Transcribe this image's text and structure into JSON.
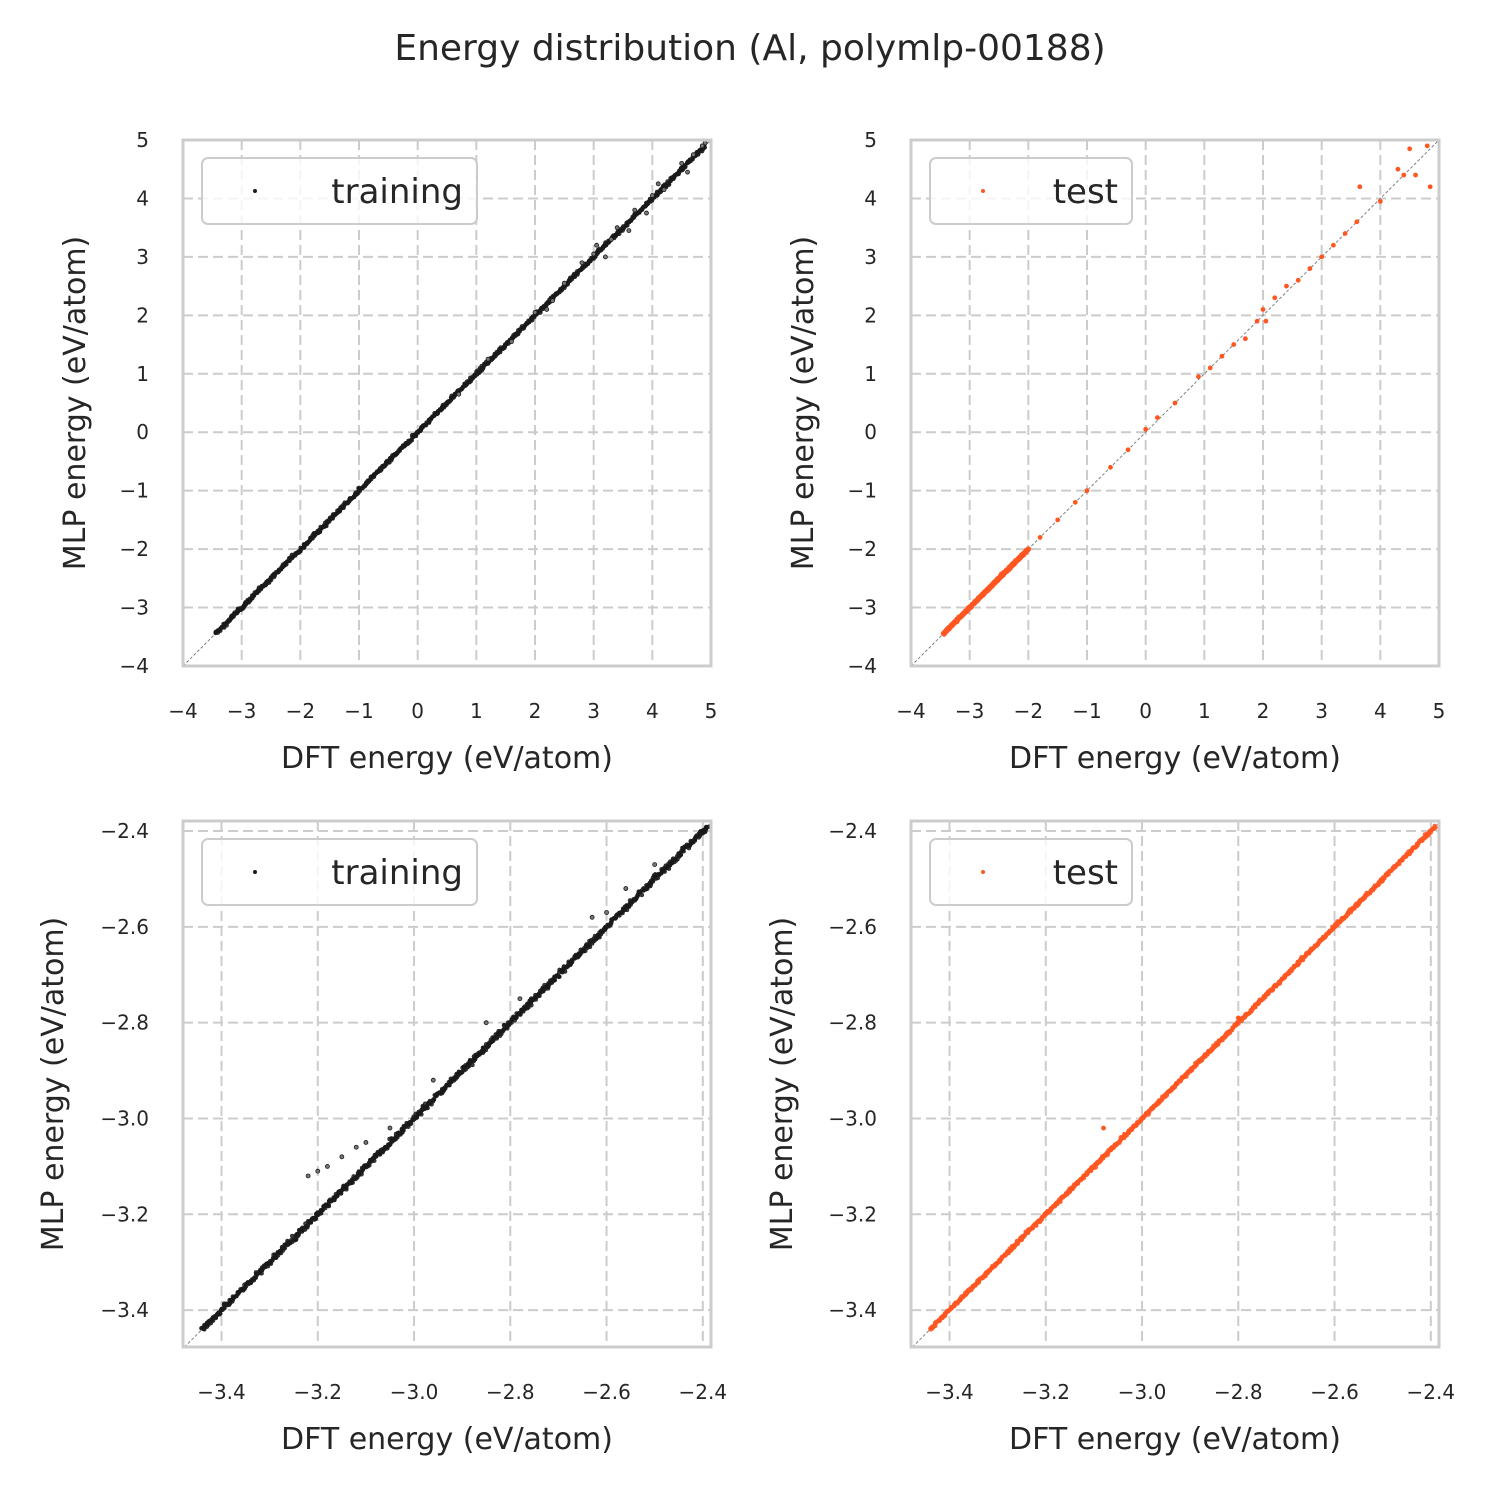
{
  "chart_data": {
    "type": "scatter",
    "title": "Energy distribution (Al, polymlp-00188)",
    "colors": {
      "training": "#1a1a1a",
      "test": "#ff5722",
      "grid": "#cccccc",
      "diagonal": "#808080"
    },
    "panels": [
      {
        "name": "training-full",
        "legend": "training",
        "legend_placement": "top-left",
        "series_color": "training",
        "xlabel": "DFT energy (eV/atom)",
        "ylabel": "MLP energy (eV/atom)",
        "xlim": [
          -4,
          5
        ],
        "ylim": [
          -4,
          5
        ],
        "xticks": [
          -4,
          -3,
          -2,
          -1,
          0,
          1,
          2,
          3,
          4,
          5
        ],
        "yticks": [
          -4,
          -3,
          -2,
          -1,
          0,
          1,
          2,
          3,
          4,
          5
        ],
        "xtick_labels": [
          "−4",
          "−3",
          "−2",
          "−1",
          "0",
          "1",
          "2",
          "3",
          "4",
          "5"
        ],
        "ytick_labels": [
          "−4",
          "−3",
          "−2",
          "−1",
          "0",
          "1",
          "2",
          "3",
          "4",
          "5"
        ],
        "dense_range": [
          -3.45,
          4.9
        ],
        "dense_spread": 0.03,
        "points": [
          [
            0.7,
            0.65
          ],
          [
            1.2,
            1.25
          ],
          [
            1.6,
            1.55
          ],
          [
            2.0,
            2.05
          ],
          [
            2.2,
            2.1
          ],
          [
            2.5,
            2.55
          ],
          [
            2.8,
            2.9
          ],
          [
            3.0,
            3.05
          ],
          [
            3.2,
            3.0
          ],
          [
            3.4,
            3.5
          ],
          [
            3.6,
            3.45
          ],
          [
            3.7,
            3.8
          ],
          [
            4.0,
            4.05
          ],
          [
            4.2,
            4.15
          ],
          [
            4.5,
            4.6
          ],
          [
            4.7,
            4.75
          ],
          [
            4.85,
            4.9
          ],
          [
            4.9,
            4.95
          ],
          [
            3.3,
            3.3
          ],
          [
            3.05,
            3.2
          ],
          [
            2.3,
            2.25
          ],
          [
            3.9,
            3.75
          ],
          [
            4.6,
            4.45
          ],
          [
            4.1,
            4.25
          ]
        ]
      },
      {
        "name": "test-full",
        "legend": "test",
        "legend_placement": "top-left",
        "series_color": "test",
        "xlabel": "DFT energy (eV/atom)",
        "ylabel": "MLP energy (eV/atom)",
        "xlim": [
          -4,
          5
        ],
        "ylim": [
          -4,
          5
        ],
        "xticks": [
          -4,
          -3,
          -2,
          -1,
          0,
          1,
          2,
          3,
          4,
          5
        ],
        "yticks": [
          -4,
          -3,
          -2,
          -1,
          0,
          1,
          2,
          3,
          4,
          5
        ],
        "xtick_labels": [
          "−4",
          "−3",
          "−2",
          "−1",
          "0",
          "1",
          "2",
          "3",
          "4",
          "5"
        ],
        "ytick_labels": [
          "−4",
          "−3",
          "−2",
          "−1",
          "0",
          "1",
          "2",
          "3",
          "4",
          "5"
        ],
        "dense_range": [
          -3.45,
          -2.0
        ],
        "dense_spread": 0.01,
        "points": [
          [
            -1.8,
            -1.8
          ],
          [
            -1.5,
            -1.5
          ],
          [
            -1.2,
            -1.2
          ],
          [
            -1.0,
            -1.0
          ],
          [
            -0.6,
            -0.6
          ],
          [
            -0.3,
            -0.3
          ],
          [
            0,
            0.05
          ],
          [
            0.2,
            0.25
          ],
          [
            0.5,
            0.5
          ],
          [
            0.9,
            0.95
          ],
          [
            1.1,
            1.1
          ],
          [
            1.3,
            1.3
          ],
          [
            1.5,
            1.5
          ],
          [
            1.7,
            1.6
          ],
          [
            1.9,
            1.9
          ],
          [
            2.0,
            2.1
          ],
          [
            2.05,
            1.9
          ],
          [
            2.2,
            2.3
          ],
          [
            2.4,
            2.5
          ],
          [
            2.6,
            2.6
          ],
          [
            2.8,
            2.8
          ],
          [
            3.0,
            3.0
          ],
          [
            3.2,
            3.2
          ],
          [
            3.4,
            3.4
          ],
          [
            3.6,
            3.6
          ],
          [
            3.65,
            4.2
          ],
          [
            4.0,
            3.95
          ],
          [
            4.3,
            4.5
          ],
          [
            4.4,
            4.4
          ],
          [
            4.5,
            4.85
          ],
          [
            4.6,
            4.4
          ],
          [
            4.8,
            4.9
          ],
          [
            4.85,
            4.2
          ]
        ]
      },
      {
        "name": "training-zoom",
        "legend": "training",
        "legend_placement": "top-left",
        "series_color": "training",
        "xlabel": "DFT energy (eV/atom)",
        "ylabel": "MLP energy (eV/atom)",
        "xlim": [
          -3.48,
          -2.383
        ],
        "ylim": [
          -3.477,
          -2.379
        ],
        "xticks": [
          -3.4,
          -3.2,
          -3.0,
          -2.8,
          -2.6,
          -2.4
        ],
        "yticks": [
          -3.4,
          -3.2,
          -3.0,
          -2.8,
          -2.6,
          -2.4
        ],
        "xtick_labels": [
          "−3.4",
          "−3.2",
          "−3.0",
          "−2.8",
          "−2.6",
          "−2.4"
        ],
        "ytick_labels": [
          "−3.4",
          "−3.2",
          "−3.0",
          "−2.8",
          "−2.6",
          "−2.4"
        ],
        "dense_range": [
          -3.44,
          -2.39
        ],
        "dense_spread": 0.006,
        "points": [
          [
            -3.22,
            -3.12
          ],
          [
            -3.2,
            -3.11
          ],
          [
            -3.18,
            -3.1
          ],
          [
            -3.15,
            -3.08
          ],
          [
            -3.12,
            -3.06
          ],
          [
            -3.05,
            -3.02
          ],
          [
            -2.96,
            -2.92
          ],
          [
            -2.85,
            -2.8
          ],
          [
            -2.78,
            -2.75
          ],
          [
            -2.63,
            -2.58
          ],
          [
            -2.56,
            -2.52
          ],
          [
            -2.6,
            -2.57
          ],
          [
            -2.5,
            -2.47
          ],
          [
            -3.1,
            -3.05
          ]
        ]
      },
      {
        "name": "test-zoom",
        "legend": "test",
        "legend_placement": "top-left",
        "series_color": "test",
        "xlabel": "DFT energy (eV/atom)",
        "ylabel": "MLP energy (eV/atom)",
        "xlim": [
          -3.48,
          -2.383
        ],
        "ylim": [
          -3.477,
          -2.379
        ],
        "xticks": [
          -3.4,
          -3.2,
          -3.0,
          -2.8,
          -2.6,
          -2.4
        ],
        "yticks": [
          -3.4,
          -3.2,
          -3.0,
          -2.8,
          -2.6,
          -2.4
        ],
        "xtick_labels": [
          "−3.4",
          "−3.2",
          "−3.0",
          "−2.8",
          "−2.6",
          "−2.4"
        ],
        "ytick_labels": [
          "−3.4",
          "−3.2",
          "−3.0",
          "−2.8",
          "−2.6",
          "−2.4"
        ],
        "dense_range": [
          -3.44,
          -2.39
        ],
        "dense_spread": 0.003,
        "points": [
          [
            -3.08,
            -3.02
          ],
          [
            -2.8,
            -2.79
          ],
          [
            -2.55,
            -2.55
          ]
        ]
      }
    ]
  }
}
